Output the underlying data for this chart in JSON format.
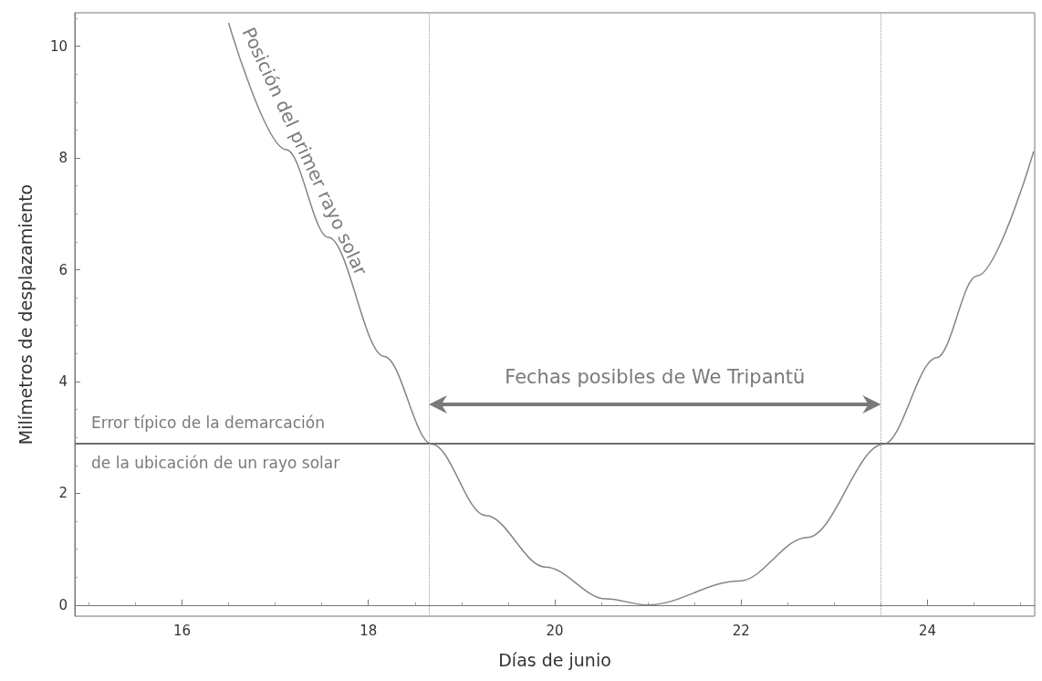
{
  "chart_data": {
    "type": "line",
    "xlabel": "Días de junio",
    "ylabel": "Milímetros de desplazamiento",
    "xlim": [
      14.85,
      25.15
    ],
    "xticks": [
      16,
      18,
      20,
      22,
      24
    ],
    "ylim": [
      -0.2,
      10.6
    ],
    "yticks": [
      0,
      2,
      4,
      6,
      8,
      10
    ],
    "marker": "none",
    "series": [
      {
        "name": "Posición del primer rayo solar",
        "color": "#858585",
        "x": [
          16.5,
          17.12,
          17.57,
          18.17,
          18.68,
          19.26,
          19.9,
          20.55,
          21.0,
          21.98,
          22.71,
          23.53,
          24.1,
          24.53,
          25.14
        ],
        "values": [
          10.42,
          8.15,
          6.58,
          4.45,
          2.88,
          1.6,
          0.68,
          0.11,
          0.0,
          0.43,
          1.21,
          2.88,
          4.43,
          5.89,
          8.12
        ]
      }
    ],
    "ref_lines": [
      {
        "axis": "y",
        "value": 2.9,
        "label": "Error típico de la demarcación\nde la ubicación de un rayo solar",
        "color": "#6e6e6e",
        "line_style": "solid"
      },
      {
        "axis": "x",
        "value": 18.65,
        "label": null,
        "color": "#9a9a9a",
        "line_style": "dotted"
      },
      {
        "axis": "x",
        "value": 23.5,
        "label": null,
        "color": "#9a9a9a",
        "line_style": "dotted"
      }
    ],
    "annotations": [
      "Fechas posibles de We Tripantü"
    ]
  }
}
